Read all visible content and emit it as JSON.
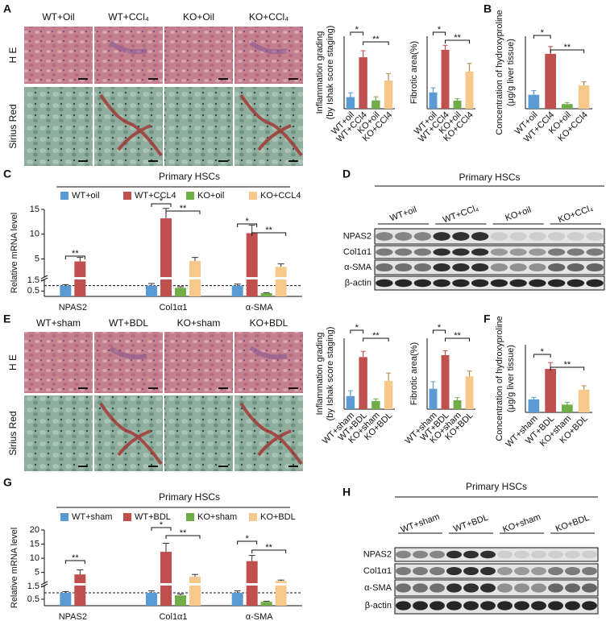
{
  "figure": {
    "panel_labels": [
      "A",
      "B",
      "C",
      "D",
      "E",
      "F",
      "G",
      "H"
    ],
    "histology_A": {
      "columns": [
        "WT+Oil",
        "WT+CCl₄",
        "KO+Oil",
        "KO+CCl₄"
      ],
      "rows": [
        "H E",
        "Sirius Red"
      ]
    },
    "histology_E": {
      "columns": [
        "WT+sham",
        "WT+BDL",
        "KO+sham",
        "KO+BDL"
      ],
      "rows": [
        "H E",
        "Sirius Red"
      ]
    },
    "blot_D": {
      "title": "Primary HSCs",
      "lanes": [
        "WT+oil",
        "WT+CCl₄",
        "KO+oil",
        "KO+CCl₄"
      ],
      "rows": [
        "NPAS2",
        "Col1α1",
        "α-SMA",
        "β-actin"
      ]
    },
    "blot_H": {
      "title": "Primary HSCs",
      "lanes": [
        "WT+sham",
        "WT+BDL",
        "KO+sham",
        "KO+BDL"
      ],
      "rows": [
        "NPAS2",
        "Col1α1",
        "α-SMA",
        "β-actin"
      ]
    }
  },
  "chart_data": [
    {
      "type": "bar",
      "ylabel": [
        "Inflammation grading",
        "(by Ishak score staging)"
      ],
      "categories": [
        "WT+oil",
        "WT+CCl4",
        "KO+oil",
        "KO+CCl4"
      ],
      "values": [
        3.2,
        14.2,
        2.3,
        7.8
      ],
      "errors": [
        1.2,
        1.8,
        1.0,
        1.9
      ],
      "colors": [
        "#5b9bd5",
        "#c0504d",
        "#70ad47",
        "#f6c98b"
      ],
      "ylim": [
        0,
        20
      ],
      "annotations": [
        "*",
        "**"
      ]
    },
    {
      "type": "bar",
      "ylabel": [
        "Fibrotic area(%)"
      ],
      "categories": [
        "WT+oil",
        "WT+CCl4",
        "KO+oil",
        "KO+CCl4"
      ],
      "values": [
        1.8,
        6.5,
        0.9,
        4.1
      ],
      "errors": [
        0.5,
        0.5,
        0.2,
        0.9
      ],
      "colors": [
        "#5b9bd5",
        "#c0504d",
        "#70ad47",
        "#f6c98b"
      ],
      "ylim": [
        0,
        8
      ],
      "annotations": [
        "*",
        "**"
      ]
    },
    {
      "type": "bar",
      "ylabel": [
        "Concentration of hydroxyproline",
        "(μg/g liver tissue)"
      ],
      "categories": [
        "WT+oil",
        "WT+CCl4",
        "KO+oil",
        "KO+CCl4"
      ],
      "values": [
        270,
        1060,
        90,
        450
      ],
      "errors": [
        80,
        140,
        30,
        70
      ],
      "colors": [
        "#5b9bd5",
        "#c0504d",
        "#70ad47",
        "#f6c98b"
      ],
      "ylim": [
        0,
        1400
      ],
      "annotations": [
        "*",
        "**"
      ]
    },
    {
      "type": "grouped-bar",
      "title": "Primary HSCs",
      "ylabel": [
        "Relative mRNA level"
      ],
      "categories": [
        "NPAS2",
        "Col1α1",
        "α-SMA"
      ],
      "series": [
        {
          "name": "WT+oil",
          "color": "#5b9bd5",
          "values": [
            1,
            1,
            1
          ],
          "errors": [
            0.1,
            0.2,
            0.15
          ]
        },
        {
          "name": "WT+CCL4",
          "color": "#c0504d",
          "values": [
            4.5,
            13.2,
            10.2
          ],
          "errors": [
            0.8,
            2.0,
            1.6
          ]
        },
        {
          "name": "KO+oil",
          "color": "#70ad47",
          "values": [
            null,
            0.8,
            0.3
          ],
          "errors": [
            null,
            0.1,
            0.05
          ]
        },
        {
          "name": "KO+CCL4",
          "color": "#f6c98b",
          "values": [
            null,
            4.6,
            3.4
          ],
          "errors": [
            null,
            0.7,
            0.6
          ]
        }
      ],
      "ylim": [
        0,
        15
      ],
      "ybreak": 1.5,
      "yticks": [
        0.5,
        1.5,
        5,
        10,
        15
      ],
      "refline": 1,
      "annotations": [
        "**",
        "*",
        "**",
        "*",
        "**"
      ]
    },
    {
      "type": "bar",
      "ylabel": [
        "Inflammation grading",
        "(by Ishak score staging)"
      ],
      "categories": [
        "WT+sham",
        "WT+BDL",
        "KO+sham",
        "KO+BDL"
      ],
      "values": [
        3.7,
        14.7,
        2.3,
        8.0
      ],
      "errors": [
        1.5,
        1.6,
        0.6,
        2.2
      ],
      "colors": [
        "#5b9bd5",
        "#c0504d",
        "#70ad47",
        "#f6c98b"
      ],
      "ylim": [
        0,
        20
      ],
      "annotations": [
        "*",
        "**"
      ]
    },
    {
      "type": "bar",
      "ylabel": [
        "Fibrotic area(%)"
      ],
      "categories": [
        "WT+sham",
        "WT+BDL",
        "KO+sham",
        "KO+BDL"
      ],
      "values": [
        2.3,
        6.1,
        1.0,
        3.7
      ],
      "errors": [
        0.8,
        0.5,
        0.3,
        0.6
      ],
      "colors": [
        "#5b9bd5",
        "#c0504d",
        "#70ad47",
        "#f6c98b"
      ],
      "ylim": [
        0,
        8
      ],
      "annotations": [
        "*",
        "**"
      ]
    },
    {
      "type": "bar",
      "ylabel": [
        "Concentration of hydroxyproline",
        "(μg/g liver tissue)"
      ],
      "categories": [
        "WT+sham",
        "WT+BDL",
        "KO+sham",
        "KO+BDL"
      ],
      "values": [
        270,
        900,
        160,
        470
      ],
      "errors": [
        40,
        130,
        50,
        80
      ],
      "colors": [
        "#5b9bd5",
        "#c0504d",
        "#70ad47",
        "#f6c98b"
      ],
      "ylim": [
        0,
        1400
      ],
      "annotations": [
        "*",
        "**"
      ]
    },
    {
      "type": "grouped-bar",
      "title": "Primary HSCs",
      "ylabel": [
        "Relative mRNA level"
      ],
      "categories": [
        "NPAS2",
        "Col1α1",
        "α-SMA"
      ],
      "series": [
        {
          "name": "WT+sham",
          "color": "#5b9bd5",
          "values": [
            1,
            1,
            1
          ],
          "errors": [
            0.1,
            0.15,
            0.15
          ]
        },
        {
          "name": "WT+BDL",
          "color": "#c0504d",
          "values": [
            4.3,
            12.3,
            9.0
          ],
          "errors": [
            1.6,
            3.0,
            2.0
          ]
        },
        {
          "name": "KO+sham",
          "color": "#70ad47",
          "values": [
            null,
            0.8,
            0.3
          ],
          "errors": [
            null,
            0.1,
            0.05
          ]
        },
        {
          "name": "KO+BDL",
          "color": "#f6c98b",
          "values": [
            null,
            3.5,
            2.0
          ],
          "errors": [
            null,
            0.8,
            0.3
          ]
        }
      ],
      "ylim": [
        0,
        20
      ],
      "ybreak": 1.5,
      "yticks": [
        0.5,
        1.5,
        5,
        10,
        15,
        20
      ],
      "refline": 1,
      "annotations": [
        "**",
        "*",
        "**",
        "*",
        "**"
      ]
    }
  ]
}
